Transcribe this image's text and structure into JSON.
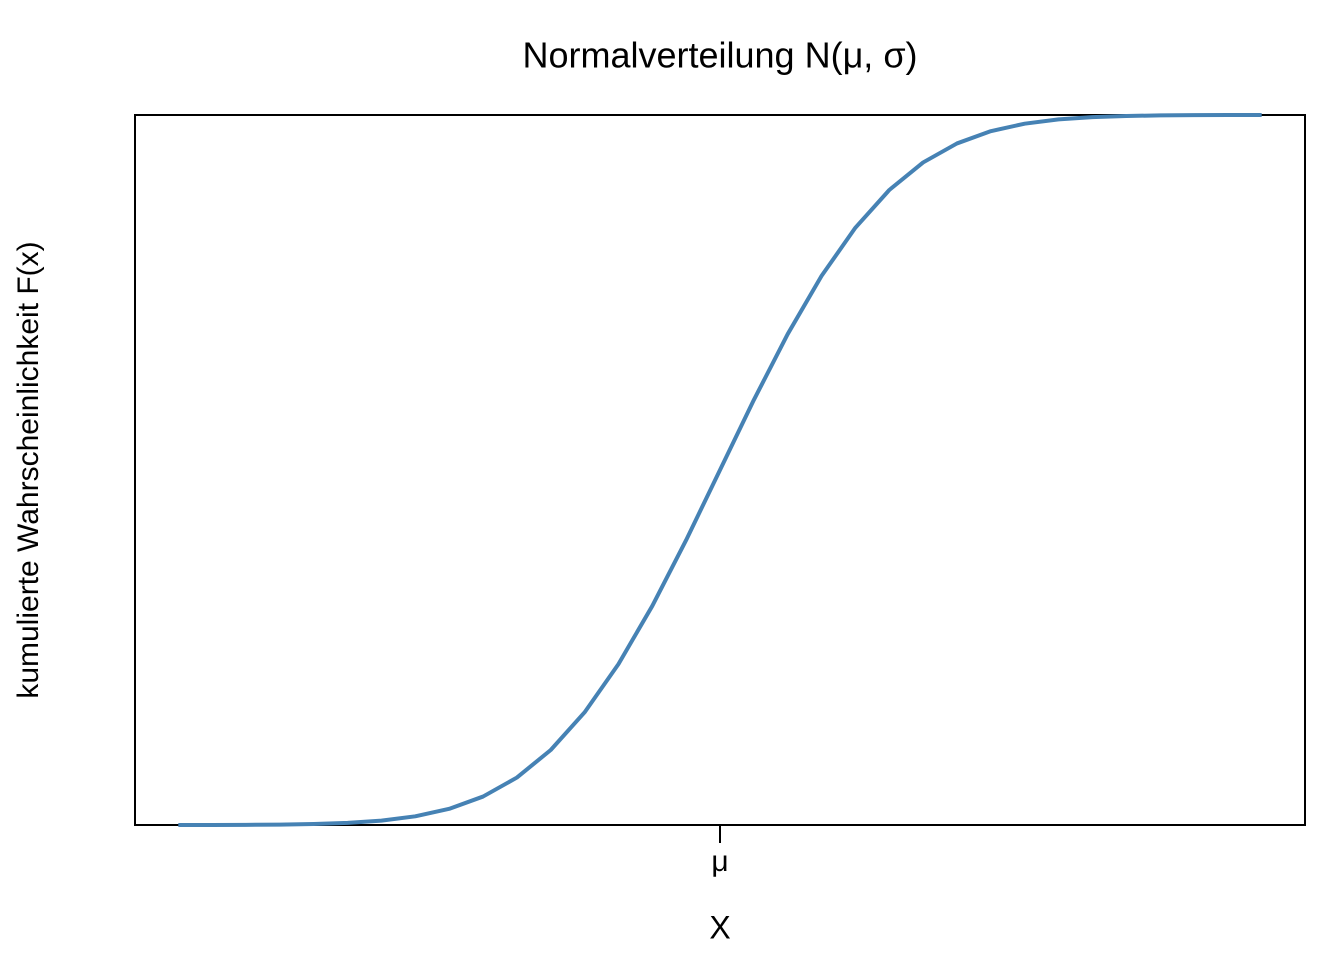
{
  "chart_data": {
    "type": "line",
    "title": "Normalverteilung N(μ, σ)",
    "x_label": "X",
    "y_label": "kumulierte Wahrscheinlichkeit F(x)",
    "x": [
      -4,
      -3.75,
      -3.5,
      -3.25,
      -3,
      -2.75,
      -2.5,
      -2.25,
      -2,
      -1.75,
      -1.5,
      -1.25,
      -1,
      -0.75,
      -0.5,
      -0.25,
      0,
      0.25,
      0.5,
      0.75,
      1,
      1.25,
      1.5,
      1.75,
      2,
      2.25,
      2.5,
      2.75,
      3,
      3.25,
      3.5,
      3.75,
      4
    ],
    "values": [
      3e-05,
      9e-05,
      0.00023,
      0.00058,
      0.00135,
      0.00298,
      0.00621,
      0.01222,
      0.02275,
      0.04006,
      0.06681,
      0.10565,
      0.15866,
      0.22663,
      0.30854,
      0.40129,
      0.5,
      0.59871,
      0.69146,
      0.77337,
      0.84134,
      0.89435,
      0.93319,
      0.95994,
      0.97725,
      0.98778,
      0.99379,
      0.99702,
      0.99865,
      0.99942,
      0.99977,
      0.99991,
      0.99997
    ],
    "color": "#4682b4",
    "xlim": [
      -4.32,
      4.32
    ],
    "xticks": [
      {
        "value": 0,
        "label": "μ"
      }
    ],
    "ylim": [
      0,
      1
    ],
    "grid": false
  }
}
